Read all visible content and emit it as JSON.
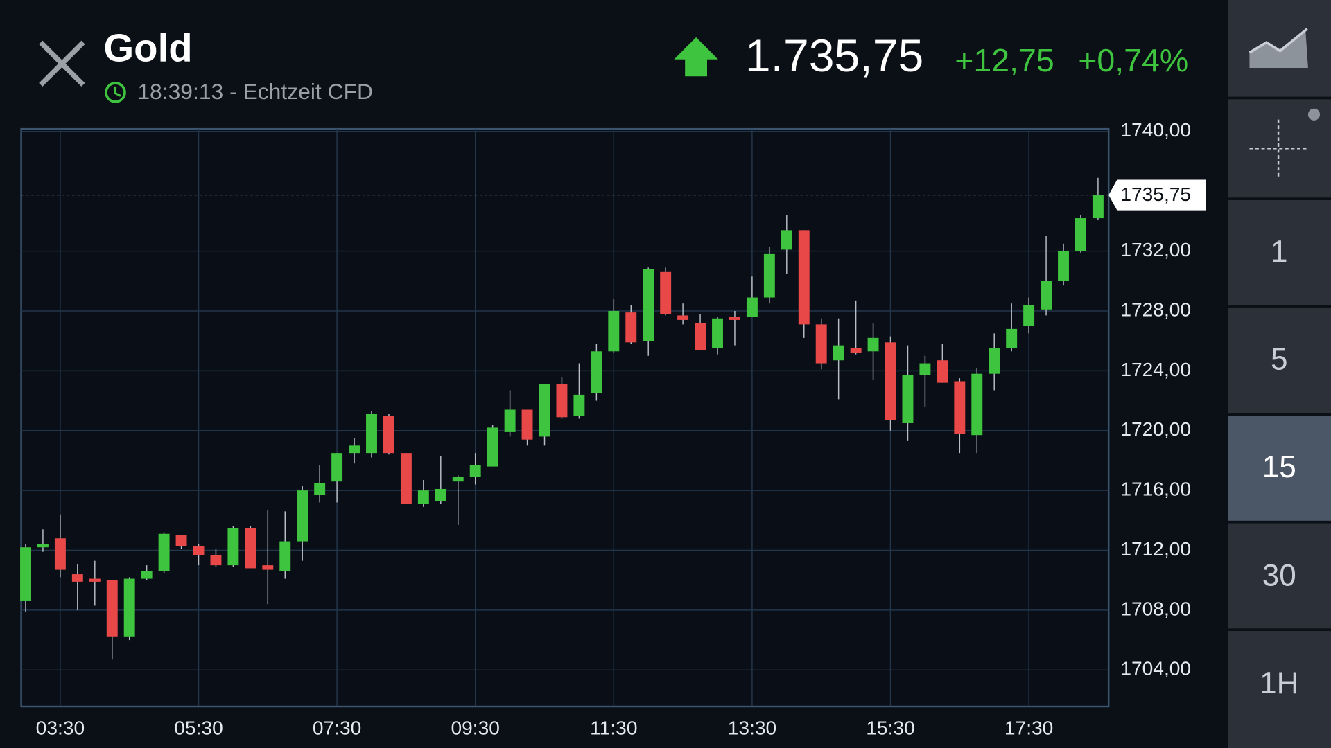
{
  "header": {
    "title": "Gold",
    "time": "18:39:13 - Echtzeit CFD",
    "price": "1.735,75",
    "change": "+12,75",
    "change_percent": "+0,74%"
  },
  "sidebar": {
    "intervals": [
      "1",
      "5",
      "15",
      "30",
      "1H"
    ]
  },
  "chart_data": {
    "type": "candlestick",
    "x": [
      3.0,
      3.25,
      3.5,
      3.75,
      4.0,
      4.25,
      4.5,
      4.75,
      5.0,
      5.25,
      5.5,
      5.75,
      6.0,
      6.25,
      6.5,
      6.75,
      7.0,
      7.25,
      7.5,
      7.75,
      8.0,
      8.25,
      8.5,
      8.75,
      9.0,
      9.25,
      9.5,
      9.75,
      10.0,
      10.25,
      10.5,
      10.75,
      11.0,
      11.25,
      11.5,
      11.75,
      12.0,
      12.25,
      12.5,
      12.75,
      13.0,
      13.25,
      13.5,
      13.75,
      14.0,
      14.25,
      14.5,
      14.75,
      15.0,
      15.25,
      15.5,
      15.75,
      16.0,
      16.25,
      16.5,
      16.75,
      17.0,
      17.25,
      17.5,
      17.75,
      18.0,
      18.25,
      18.5
    ],
    "open": [
      1708.6,
      1712.2,
      1712.8,
      1710.4,
      1710.1,
      1710.0,
      1706.2,
      1710.1,
      1710.6,
      1713.0,
      1712.3,
      1711.7,
      1711.0,
      1713.5,
      1711.0,
      1710.6,
      1712.6,
      1715.7,
      1716.6,
      1718.5,
      1718.5,
      1721.0,
      1718.5,
      1715.1,
      1715.3,
      1716.6,
      1716.9,
      1717.6,
      1719.9,
      1721.4,
      1719.6,
      1723.1,
      1721.0,
      1722.5,
      1725.3,
      1727.9,
      1726.0,
      1730.6,
      1727.7,
      1727.2,
      1725.5,
      1727.6,
      1727.6,
      1728.9,
      1732.1,
      1733.4,
      1727.1,
      1724.7,
      1725.5,
      1725.3,
      1725.9,
      1720.5,
      1723.7,
      1724.7,
      1723.3,
      1719.7,
      1723.8,
      1725.5,
      1727.0,
      1728.1,
      1730.0,
      1732.0,
      1734.2
    ],
    "high": [
      1712.4,
      1713.4,
      1714.4,
      1711.1,
      1711.3,
      1710.0,
      1710.2,
      1711.0,
      1713.2,
      1713.0,
      1712.4,
      1712.1,
      1713.6,
      1713.6,
      1714.7,
      1714.6,
      1716.3,
      1717.7,
      1718.5,
      1719.5,
      1721.3,
      1721.1,
      1718.5,
      1716.7,
      1718.3,
      1717.0,
      1718.5,
      1720.4,
      1722.7,
      1721.4,
      1723.1,
      1723.6,
      1724.5,
      1725.8,
      1728.8,
      1728.4,
      1730.9,
      1730.9,
      1728.5,
      1727.8,
      1727.6,
      1728.0,
      1730.3,
      1732.3,
      1734.4,
      1733.4,
      1727.5,
      1727.5,
      1728.7,
      1727.2,
      1726.3,
      1725.7,
      1725.0,
      1725.8,
      1723.5,
      1724.2,
      1726.5,
      1728.5,
      1728.9,
      1733.0,
      1732.5,
      1734.4,
      1736.9
    ],
    "low": [
      1707.9,
      1711.9,
      1710.2,
      1708.0,
      1708.3,
      1704.7,
      1706.0,
      1710.0,
      1710.5,
      1712.1,
      1711.0,
      1710.9,
      1710.9,
      1710.8,
      1708.4,
      1710.1,
      1711.3,
      1715.2,
      1715.2,
      1717.8,
      1718.2,
      1718.4,
      1715.1,
      1714.9,
      1715.1,
      1713.7,
      1716.4,
      1717.6,
      1719.6,
      1719.0,
      1719.0,
      1720.8,
      1720.8,
      1722.0,
      1725.2,
      1725.8,
      1725.0,
      1727.7,
      1727.1,
      1725.4,
      1725.1,
      1725.7,
      1727.6,
      1728.5,
      1730.5,
      1726.2,
      1724.1,
      1722.1,
      1725.1,
      1723.4,
      1720.0,
      1719.3,
      1721.6,
      1723.2,
      1718.5,
      1718.5,
      1722.7,
      1725.3,
      1726.5,
      1727.7,
      1729.7,
      1731.9,
      1734.1
    ],
    "close": [
      1712.2,
      1712.4,
      1710.7,
      1709.9,
      1709.9,
      1706.2,
      1710.1,
      1710.6,
      1713.1,
      1712.3,
      1711.7,
      1711.0,
      1713.5,
      1710.8,
      1710.7,
      1712.6,
      1716.0,
      1716.5,
      1718.5,
      1719.0,
      1721.1,
      1718.5,
      1715.1,
      1716.0,
      1716.1,
      1716.9,
      1717.7,
      1720.2,
      1721.4,
      1719.4,
      1723.1,
      1720.9,
      1722.4,
      1725.3,
      1728.0,
      1725.9,
      1730.8,
      1727.8,
      1727.4,
      1725.4,
      1727.5,
      1727.4,
      1728.9,
      1731.8,
      1733.4,
      1727.1,
      1724.5,
      1725.7,
      1725.2,
      1726.2,
      1720.7,
      1723.7,
      1724.5,
      1723.2,
      1719.8,
      1723.8,
      1725.5,
      1726.8,
      1728.4,
      1730.0,
      1732.0,
      1734.2,
      1735.75
    ],
    "up_color": "#3ec43e",
    "down_color": "#e84848",
    "xlim": [
      2.936,
      18.653
    ],
    "xticks": [
      {
        "value": 3.5,
        "label": "03:30"
      },
      {
        "value": 5.5,
        "label": "05:30"
      },
      {
        "value": 7.5,
        "label": "07:30"
      },
      {
        "value": 9.5,
        "label": "09:30"
      },
      {
        "value": 11.5,
        "label": "11:30"
      },
      {
        "value": 13.5,
        "label": "13:30"
      },
      {
        "value": 15.5,
        "label": "15:30"
      },
      {
        "value": 17.5,
        "label": "17:30"
      }
    ],
    "ylim": [
      1701.56,
      1740.17
    ],
    "yticks": [
      {
        "value": 1704,
        "label": "1704,00"
      },
      {
        "value": 1708,
        "label": "1708,00"
      },
      {
        "value": 1712,
        "label": "1712,00"
      },
      {
        "value": 1716,
        "label": "1716,00"
      },
      {
        "value": 1720,
        "label": "1720,00"
      },
      {
        "value": 1724,
        "label": "1724,00"
      },
      {
        "value": 1728,
        "label": "1728,00"
      },
      {
        "value": 1732,
        "label": "1732,00"
      },
      {
        "value": 1740,
        "label": "1740,00"
      }
    ],
    "last_price": {
      "value": 1735.75,
      "label": "1735,75"
    },
    "grid": true
  }
}
